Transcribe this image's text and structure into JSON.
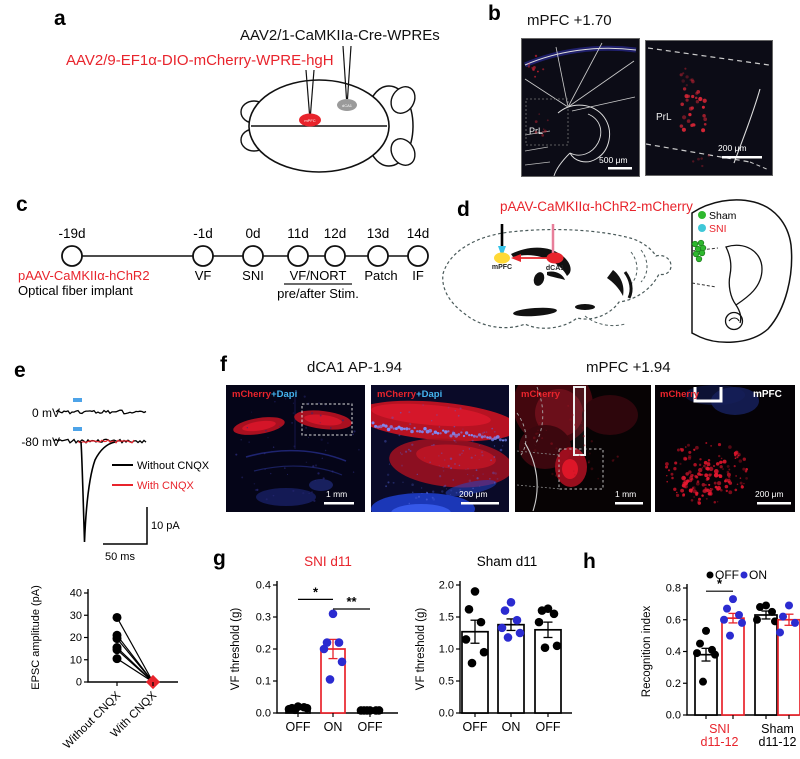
{
  "colors": {
    "red": "#e8242c",
    "blue": "#2b2bd0",
    "cyan": "#3fc8d8",
    "green": "#2eb82e",
    "stim_blue": "#4da3e8"
  },
  "panels": {
    "a": {
      "letter": "a",
      "virus_black": "AAV2/1-CaMKIIa-Cre-WPREs",
      "virus_red": "AAV2/9-EF1α-DIO-mCherry-WPRE-hgH",
      "site1": "mPFC",
      "site2": "dCA1"
    },
    "b": {
      "letter": "b",
      "title": "mPFC +1.70",
      "img1": {
        "region": "PrL",
        "scale": "500 μm"
      },
      "img2": {
        "region": "PrL",
        "scale": "200 μm"
      }
    },
    "c": {
      "letter": "c",
      "days": [
        "-19d",
        "-1d",
        "0d",
        "11d",
        "12d",
        "13d",
        "14d"
      ],
      "below_red": "pAAV-CaMKIIα-hChR2",
      "below_black": "Optical fiber implant",
      "vf": "VF",
      "sni": "SNI",
      "vfnort": "VF/NORT",
      "prestim": "pre/after Stim.",
      "patch": "Patch",
      "if_label": "IF"
    },
    "d": {
      "letter": "d",
      "title": "pAAV-CaMKIIα-hChR2-mCherry",
      "mpfc": "mPFC",
      "dca1": "dCA1",
      "legend_sham": "Sham",
      "legend_sni": "SNI"
    },
    "e": {
      "letter": "e",
      "v0": "0 mV",
      "v80": "-80 mV",
      "leg1": "Without CNQX",
      "leg2": "With CNQX",
      "scale_v": "10 pA",
      "scale_h": "50 ms"
    },
    "f": {
      "letter": "f",
      "title_left": "dCA1 AP-1.94",
      "title_right": "mPFC +1.94",
      "img1": {
        "label": "mCherry",
        "label2": "+Dapi",
        "scale": "1 mm"
      },
      "img2": {
        "label": "mCherry",
        "label2": "+Dapi",
        "scale": "200 μm"
      },
      "img3": {
        "label": "mCherry",
        "scale": "1 mm"
      },
      "img4": {
        "label": "mCherry",
        "region": "mPFC",
        "scale": "200 μm"
      }
    },
    "g": {
      "letter": "g"
    },
    "h": {
      "letter": "h"
    }
  },
  "chart_data": [
    {
      "id": "epsc",
      "type": "scatter",
      "title": "",
      "ylabel": "EPSC amplitude (pA)",
      "ylim": [
        0,
        40
      ],
      "yticks": [
        "0",
        "10",
        "20",
        "30",
        "40"
      ],
      "categories": [
        "Without CNQX",
        "With CNQX"
      ],
      "pairs": [
        [
          29,
          0
        ],
        [
          21,
          0
        ],
        [
          19.5,
          0
        ],
        [
          15.5,
          0
        ],
        [
          14.5,
          0
        ],
        [
          10.5,
          0
        ]
      ],
      "point_colors": [
        "#000000",
        "#e8242c"
      ]
    },
    {
      "id": "sni_d11",
      "type": "bar",
      "title": "SNI d11",
      "title_color": "#e8242c",
      "ylabel": "VF threshold (g)",
      "ylim": [
        0,
        0.4
      ],
      "yticks": [
        "0.0",
        "0.1",
        "0.2",
        "0.3",
        "0.4"
      ],
      "categories": [
        "OFF",
        "ON",
        "OFF"
      ],
      "values": [
        0.015,
        0.2,
        0.008
      ],
      "errors": [
        0.004,
        0.03,
        0.002
      ],
      "bar_colors": [
        "#000000",
        "#e8242c",
        "#000000"
      ],
      "dot_colors": [
        "#000000",
        "#2b2bd0",
        "#000000"
      ],
      "points": [
        [
          0.02,
          0.015,
          0.018,
          0.012,
          0.015,
          0.01
        ],
        [
          0.31,
          0.22,
          0.22,
          0.2,
          0.16,
          0.105
        ],
        [
          0.008,
          0.008,
          0.008,
          0.008,
          0.008,
          0.008
        ]
      ],
      "significance": [
        {
          "from": 0,
          "to": 1,
          "label": "*",
          "y": 0.355
        },
        {
          "from": 1,
          "to": 2,
          "label": "**",
          "y": 0.325
        }
      ]
    },
    {
      "id": "sham_d11",
      "type": "bar",
      "title": "Sham d11",
      "title_color": "#000000",
      "ylabel": "VF threshold (g)",
      "ylim": [
        0,
        2.0
      ],
      "yticks": [
        "0.0",
        "0.5",
        "1.0",
        "1.5",
        "2.0"
      ],
      "categories": [
        "OFF",
        "ON",
        "OFF"
      ],
      "values": [
        1.27,
        1.38,
        1.3
      ],
      "errors": [
        0.18,
        0.09,
        0.12
      ],
      "bar_colors": [
        "#000000",
        "#000000",
        "#000000"
      ],
      "dot_colors": [
        "#000000",
        "#2b2bd0",
        "#000000"
      ],
      "points": [
        [
          1.9,
          1.62,
          1.42,
          1.15,
          0.95,
          0.78
        ],
        [
          1.73,
          1.6,
          1.45,
          1.33,
          1.25,
          1.18
        ],
        [
          1.63,
          1.6,
          1.55,
          1.42,
          1.05,
          1.02
        ]
      ]
    },
    {
      "id": "recognition",
      "type": "bar",
      "title": "",
      "ylabel": "Recognition index",
      "ylim": [
        0,
        0.8
      ],
      "yticks": [
        "0.0",
        "0.2",
        "0.4",
        "0.6",
        "0.8"
      ],
      "categories": [
        "OFF",
        "ON",
        "OFF",
        "ON"
      ],
      "group_labels": [
        {
          "line1": "SNI",
          "line2": "d11-12",
          "color": "#e8242c"
        },
        {
          "line1": "Sham",
          "line2": "d11-12",
          "color": "#000000"
        }
      ],
      "values": [
        0.38,
        0.61,
        0.63,
        0.6
      ],
      "errors": [
        0.04,
        0.03,
        0.025,
        0.035
      ],
      "bar_colors": [
        "#000000",
        "#e8242c",
        "#000000",
        "#e8242c"
      ],
      "dot_colors": [
        "#000000",
        "#2b2bd0",
        "#000000",
        "#2b2bd0"
      ],
      "points": [
        [
          0.53,
          0.45,
          0.41,
          0.39,
          0.38,
          0.21
        ],
        [
          0.73,
          0.67,
          0.63,
          0.6,
          0.58,
          0.5
        ],
        [
          0.69,
          0.68,
          0.65,
          0.6,
          0.59
        ],
        [
          0.69,
          0.62,
          0.58,
          0.52
        ]
      ],
      "significance": [
        {
          "from": 0,
          "to": 1,
          "label": "*",
          "y": 0.78
        }
      ],
      "legend": [
        {
          "label": "OFF",
          "color": "#000000"
        },
        {
          "label": "ON",
          "color": "#2b2bd0"
        }
      ]
    }
  ]
}
